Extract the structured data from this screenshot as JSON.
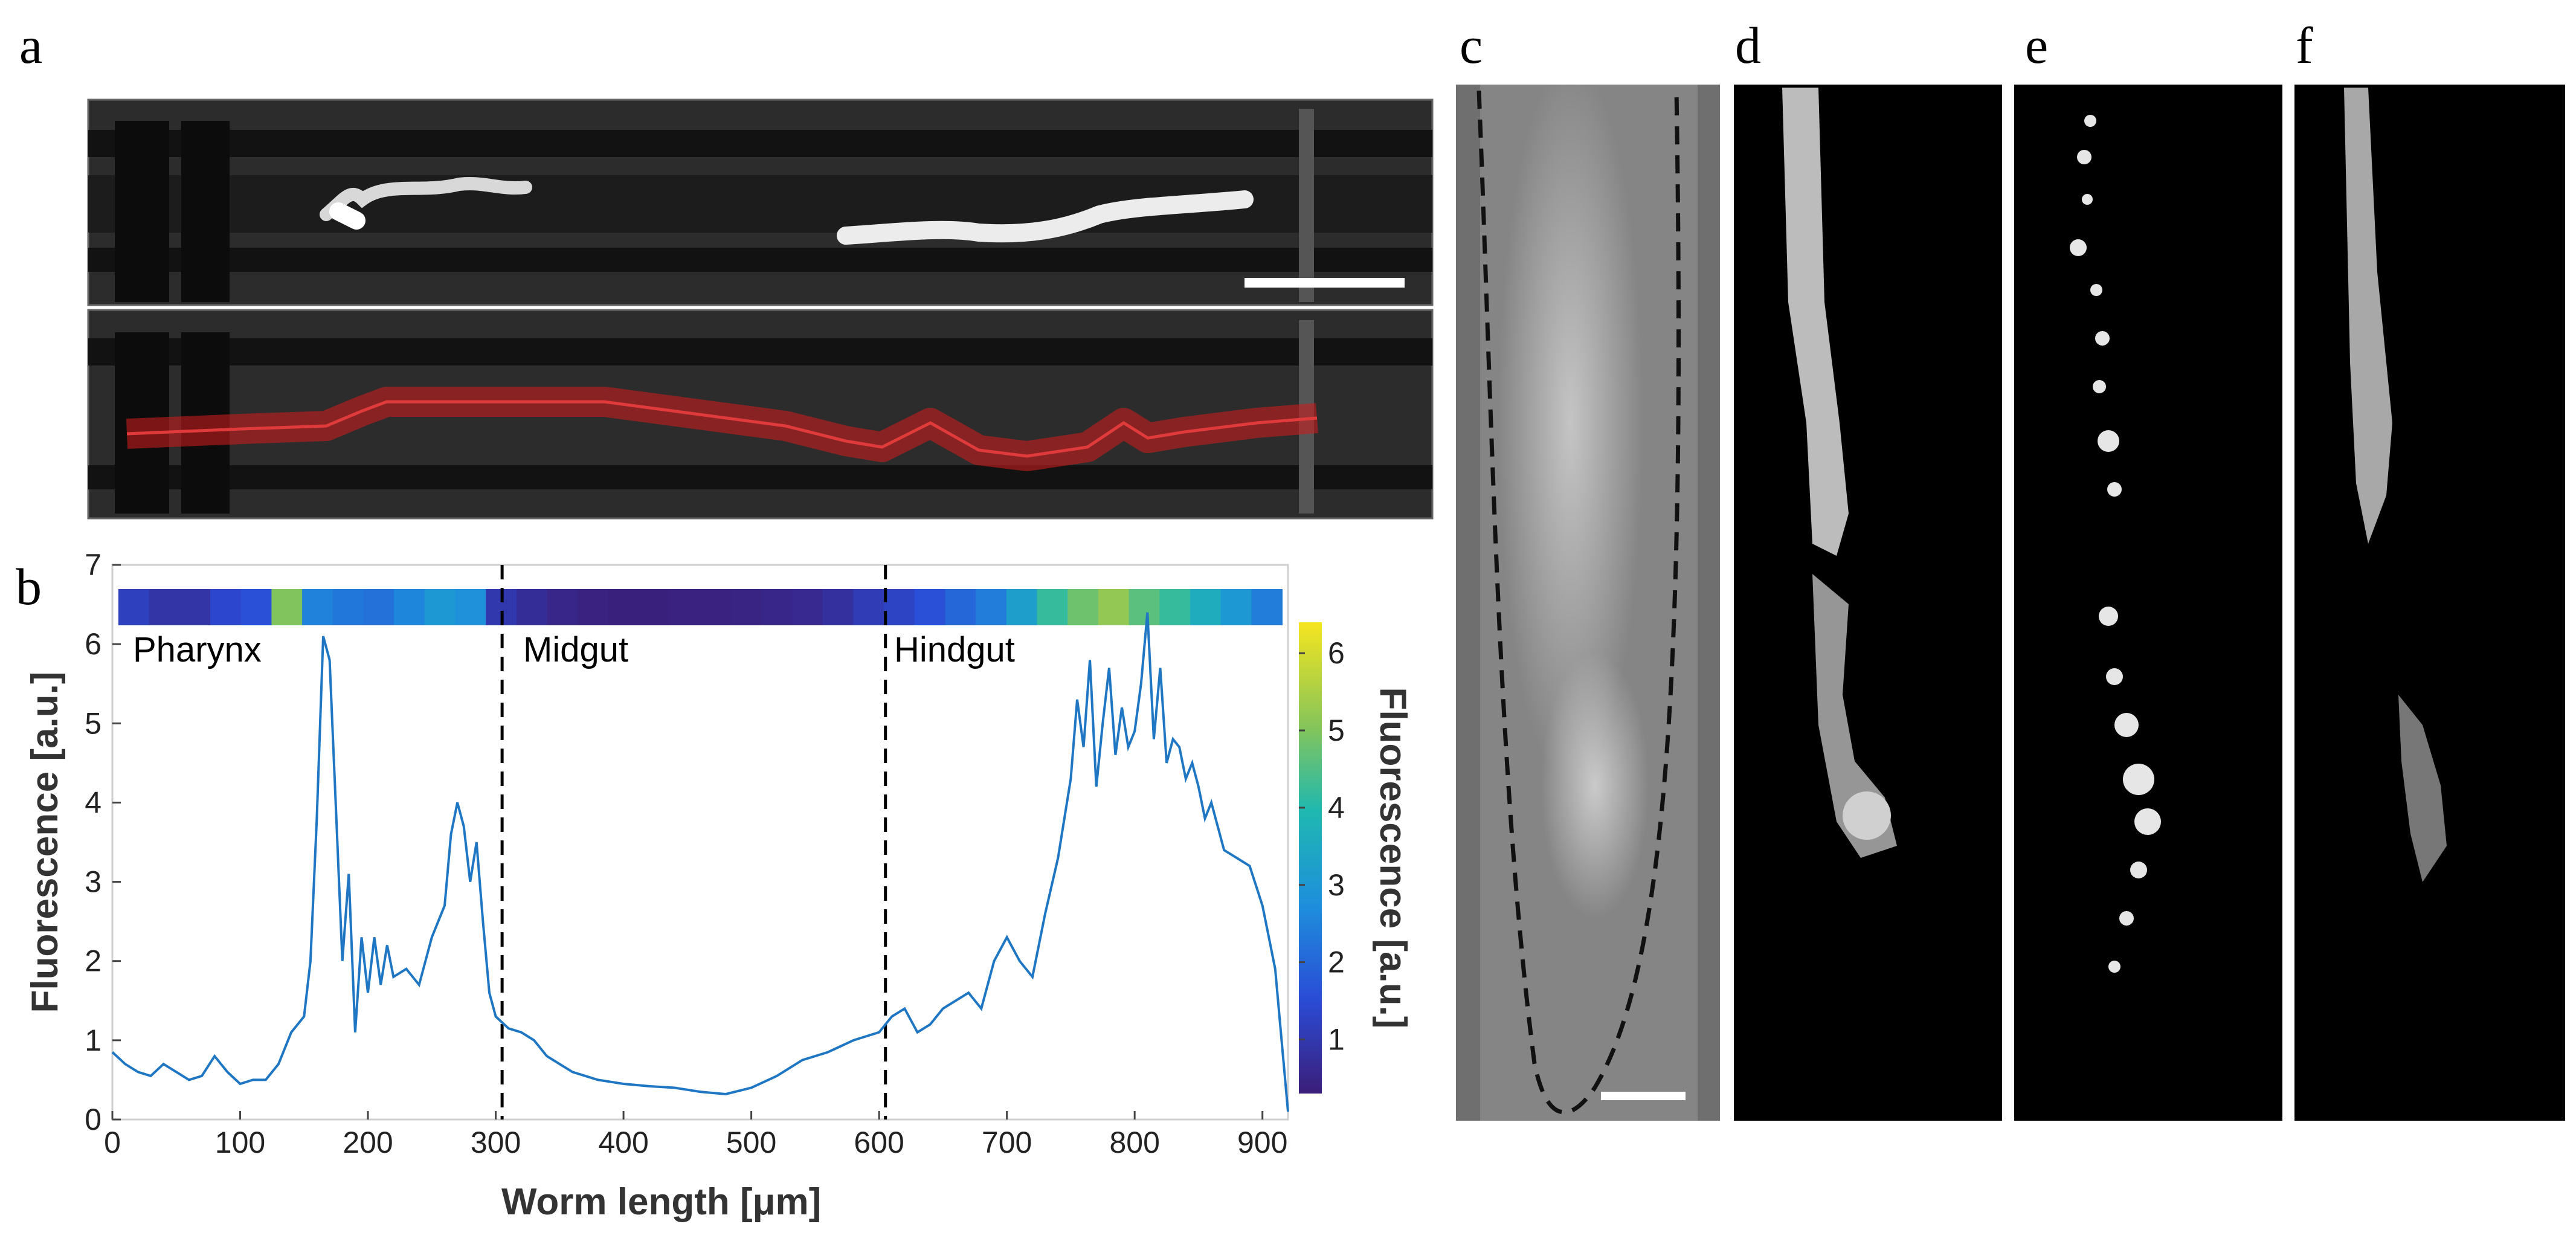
{
  "panels": {
    "a": "a",
    "b": "b",
    "c": "c",
    "d": "d",
    "e": "e",
    "f": "f"
  },
  "region_labels": [
    "Pharynx",
    "Midgut",
    "Hindgut"
  ],
  "colors": {
    "line": "#1f77c4",
    "trace_overlay": "#c81e1e",
    "divider": "#000000"
  },
  "chart_data": {
    "type": "line",
    "xlabel": "Worm length [μm]",
    "ylabel": "Fluorescence [a.u.]",
    "colorbar_label": "Fluorescence [a.u.]",
    "xlim": [
      0,
      920
    ],
    "ylim": [
      0,
      7
    ],
    "xticks": [
      0,
      100,
      200,
      300,
      400,
      500,
      600,
      700,
      800,
      900
    ],
    "yticks": [
      0,
      1,
      2,
      3,
      4,
      5,
      6,
      7
    ],
    "colorbar_ticks": [
      1,
      2,
      3,
      4,
      5,
      6
    ],
    "colorbar_range": [
      0.3,
      6.4
    ],
    "dividers_x": [
      305,
      605
    ],
    "x": [
      0,
      10,
      20,
      30,
      40,
      50,
      60,
      70,
      80,
      90,
      100,
      110,
      120,
      130,
      140,
      150,
      155,
      160,
      165,
      170,
      175,
      180,
      185,
      190,
      195,
      200,
      205,
      210,
      215,
      220,
      230,
      240,
      250,
      255,
      260,
      265,
      270,
      275,
      280,
      285,
      290,
      295,
      300,
      310,
      320,
      330,
      340,
      360,
      380,
      400,
      420,
      440,
      460,
      480,
      500,
      520,
      540,
      560,
      580,
      600,
      610,
      620,
      630,
      640,
      650,
      660,
      670,
      680,
      690,
      700,
      710,
      720,
      730,
      740,
      750,
      755,
      760,
      765,
      770,
      775,
      780,
      785,
      790,
      795,
      800,
      805,
      810,
      815,
      820,
      825,
      830,
      835,
      840,
      845,
      850,
      855,
      860,
      870,
      880,
      890,
      900,
      905,
      910,
      915,
      920
    ],
    "y": [
      0.85,
      0.7,
      0.6,
      0.55,
      0.7,
      0.6,
      0.5,
      0.55,
      0.8,
      0.6,
      0.45,
      0.5,
      0.5,
      0.7,
      1.1,
      1.3,
      2.0,
      3.8,
      6.1,
      5.8,
      3.9,
      2.0,
      3.1,
      1.1,
      2.3,
      1.6,
      2.3,
      1.7,
      2.2,
      1.8,
      1.9,
      1.7,
      2.3,
      2.5,
      2.7,
      3.6,
      4.0,
      3.7,
      3.0,
      3.5,
      2.5,
      1.6,
      1.3,
      1.15,
      1.1,
      1.0,
      0.8,
      0.6,
      0.5,
      0.45,
      0.42,
      0.4,
      0.35,
      0.32,
      0.4,
      0.55,
      0.75,
      0.85,
      1.0,
      1.1,
      1.3,
      1.4,
      1.1,
      1.2,
      1.4,
      1.5,
      1.6,
      1.4,
      2.0,
      2.3,
      2.0,
      1.8,
      2.6,
      3.3,
      4.3,
      5.3,
      4.7,
      5.8,
      4.2,
      5.0,
      5.7,
      4.6,
      5.2,
      4.7,
      4.9,
      5.5,
      6.4,
      4.8,
      5.7,
      4.5,
      4.8,
      4.7,
      4.3,
      4.5,
      4.2,
      3.8,
      4.0,
      3.4,
      3.3,
      3.2,
      2.7,
      2.3,
      1.9,
      1.0,
      0.1
    ],
    "colorbar_strip": [
      1.2,
      0.9,
      0.9,
      1.4,
      1.6,
      5.0,
      2.5,
      2.3,
      2.2,
      2.6,
      3.0,
      2.8,
      1.0,
      0.7,
      0.5,
      0.4,
      0.35,
      0.35,
      0.4,
      0.4,
      0.45,
      0.5,
      0.6,
      0.8,
      1.1,
      1.3,
      1.6,
      2.0,
      2.4,
      3.2,
      4.2,
      4.8,
      5.2,
      4.6,
      4.2,
      3.6,
      3.0,
      2.4
    ]
  }
}
